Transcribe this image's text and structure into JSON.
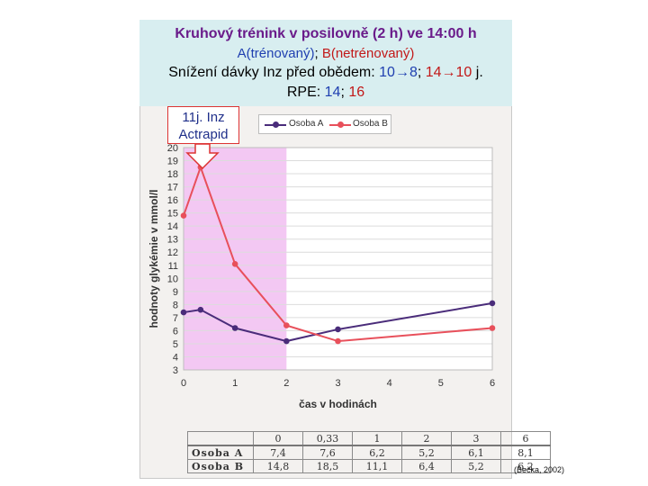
{
  "header": {
    "line1": "Kruhový trénink v posilovně (2 h) ve 14:00 h",
    "line2_a": "A(trénovaný)",
    "line2_sep": "; ",
    "line2_b": "B(netrénovaný)",
    "line3_prefix": "Snížení dávky Inz před obědem: ",
    "line3_a": "10→8",
    "line3_sep": "; ",
    "line3_b": "14→10",
    "line3_suffix": " j.",
    "line4_prefix": "RPE: ",
    "line4_a": "14",
    "line4_sep": "; ",
    "line4_b": "16"
  },
  "callout": {
    "line1": "11j. Inz",
    "line2": "Actrapid"
  },
  "source": "(Bečka, 2002)",
  "colors": {
    "series_a": "#4a2c7a",
    "series_b": "#e8505b",
    "shade": "#f3c8f3",
    "title_bg": "#d8eef0"
  },
  "chart_data": {
    "type": "line",
    "xlabel": "čas v hodinách",
    "ylabel": "hodnoty glykémie v mmol/l",
    "xlim": [
      0,
      6
    ],
    "ylim": [
      3,
      20
    ],
    "xticks": [
      0,
      1,
      2,
      3,
      4,
      5,
      6
    ],
    "yticks": [
      3,
      4,
      5,
      6,
      7,
      8,
      9,
      10,
      11,
      12,
      13,
      14,
      15,
      16,
      17,
      18,
      19,
      20
    ],
    "shaded_x_range": [
      0,
      2
    ],
    "legend_position": "top",
    "grid": "horizontal",
    "series": [
      {
        "name": "Osoba A",
        "x": [
          0,
          0.33,
          1,
          2,
          3,
          6
        ],
        "values": [
          7.4,
          7.6,
          6.2,
          5.2,
          6.1,
          8.1
        ]
      },
      {
        "name": "Osoba B",
        "x": [
          0,
          0.33,
          1,
          2,
          3,
          6
        ],
        "values": [
          14.8,
          18.5,
          11.1,
          6.4,
          5.2,
          6.2
        ]
      }
    ],
    "table": {
      "header": [
        "0",
        "0,33",
        "1",
        "2",
        "3",
        "6"
      ],
      "rows": [
        {
          "label": "Osoba A",
          "values": [
            "7,4",
            "7,6",
            "6,2",
            "5,2",
            "6,1",
            "8,1"
          ]
        },
        {
          "label": "Osoba B",
          "values": [
            "14,8",
            "18,5",
            "11,1",
            "6,4",
            "5,2",
            "6,2"
          ]
        }
      ]
    }
  }
}
